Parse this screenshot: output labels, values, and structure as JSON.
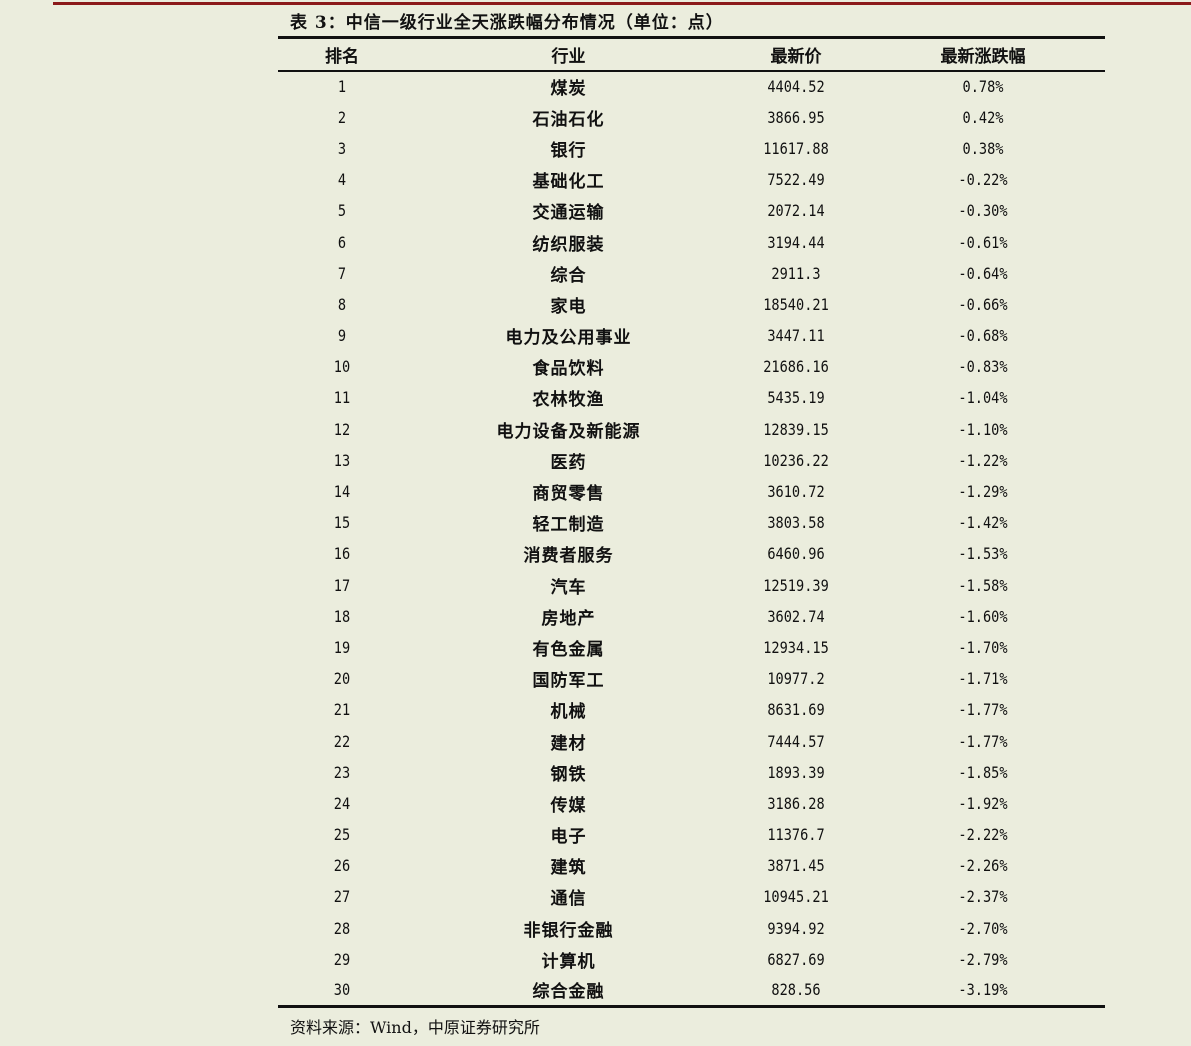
{
  "title": "表 3：中信一级行业全天涨跌幅分布情况（单位：点）",
  "headers": [
    "排名",
    "行业",
    "最新价",
    "最新涨跌幅"
  ],
  "rows": [
    [
      "1",
      "煤炭",
      "4404.52",
      "0.78%"
    ],
    [
      "2",
      "石油石化",
      "3866.95",
      "0.42%"
    ],
    [
      "3",
      "银行",
      "11617.88",
      "0.38%"
    ],
    [
      "4",
      "基础化工",
      "7522.49",
      "-0.22%"
    ],
    [
      "5",
      "交通运输",
      "2072.14",
      "-0.30%"
    ],
    [
      "6",
      "纺织服装",
      "3194.44",
      "-0.61%"
    ],
    [
      "7",
      "综合",
      "2911.3",
      "-0.64%"
    ],
    [
      "8",
      "家电",
      "18540.21",
      "-0.66%"
    ],
    [
      "9",
      "电力及公用事业",
      "3447.11",
      "-0.68%"
    ],
    [
      "10",
      "食品饮料",
      "21686.16",
      "-0.83%"
    ],
    [
      "11",
      "农林牧渔",
      "5435.19",
      "-1.04%"
    ],
    [
      "12",
      "电力设备及新能源",
      "12839.15",
      "-1.10%"
    ],
    [
      "13",
      "医药",
      "10236.22",
      "-1.22%"
    ],
    [
      "14",
      "商贸零售",
      "3610.72",
      "-1.29%"
    ],
    [
      "15",
      "轻工制造",
      "3803.58",
      "-1.42%"
    ],
    [
      "16",
      "消费者服务",
      "6460.96",
      "-1.53%"
    ],
    [
      "17",
      "汽车",
      "12519.39",
      "-1.58%"
    ],
    [
      "18",
      "房地产",
      "3602.74",
      "-1.60%"
    ],
    [
      "19",
      "有色金属",
      "12934.15",
      "-1.70%"
    ],
    [
      "20",
      "国防军工",
      "10977.2",
      "-1.71%"
    ],
    [
      "21",
      "机械",
      "8631.69",
      "-1.77%"
    ],
    [
      "22",
      "建材",
      "7444.57",
      "-1.77%"
    ],
    [
      "23",
      "钢铁",
      "1893.39",
      "-1.85%"
    ],
    [
      "24",
      "传媒",
      "3186.28",
      "-1.92%"
    ],
    [
      "25",
      "电子",
      "11376.7",
      "-2.22%"
    ],
    [
      "26",
      "建筑",
      "3871.45",
      "-2.26%"
    ],
    [
      "27",
      "通信",
      "10945.21",
      "-2.37%"
    ],
    [
      "28",
      "非银行金融",
      "9394.92",
      "-2.70%"
    ],
    [
      "29",
      "计算机",
      "6827.69",
      "-2.79%"
    ],
    [
      "30",
      "综合金融",
      "828.56",
      "-3.19%"
    ]
  ],
  "source": "资料来源：Wind，中原证券研究所",
  "colors": {
    "background": "#ebeddd",
    "top_rule": "#8b1a1a"
  }
}
